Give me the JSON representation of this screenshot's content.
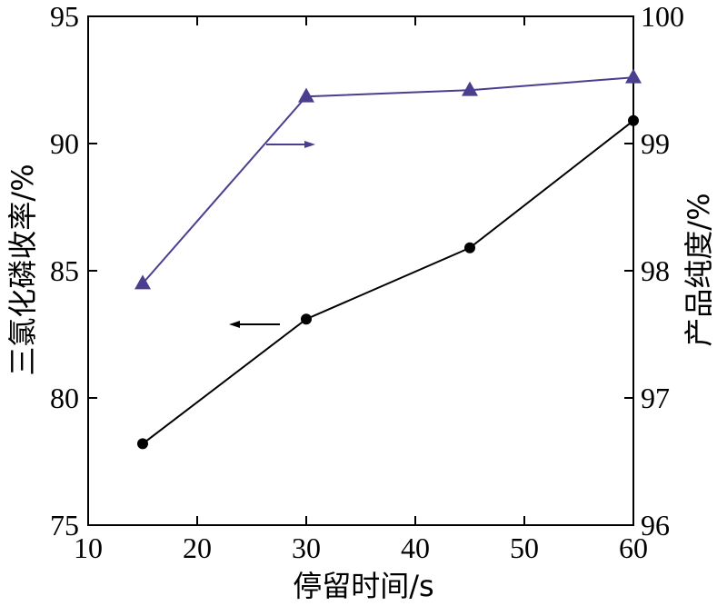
{
  "chart_data": {
    "type": "line",
    "title": "",
    "xlabel": "停留时间/s",
    "ylabel_left": "三氯化磷收率/%",
    "ylabel_right": "产品纯度/%",
    "xlim": [
      10,
      60
    ],
    "ylim_left": [
      75,
      95
    ],
    "ylim_right": [
      96,
      100
    ],
    "x_ticks": [
      10,
      20,
      30,
      40,
      50,
      60
    ],
    "y_left_ticks": [
      75,
      80,
      85,
      90,
      95
    ],
    "y_right_ticks": [
      96,
      97,
      98,
      99,
      100
    ],
    "grid": false,
    "legend": "none",
    "series": [
      {
        "axis": "left",
        "marker": "circle",
        "color": "#000000",
        "x": [
          15,
          30,
          45,
          60
        ],
        "y": [
          78.2,
          83.1,
          85.9,
          90.9
        ]
      },
      {
        "axis": "right",
        "marker": "triangle",
        "color": "#4a3f8f",
        "x": [
          15,
          30,
          45,
          60
        ],
        "y": [
          97.9,
          99.37,
          99.42,
          99.52
        ]
      }
    ],
    "annotations": [
      {
        "type": "arrow",
        "direction": "right",
        "series_index": 1
      },
      {
        "type": "arrow",
        "direction": "left",
        "series_index": 0
      }
    ]
  }
}
